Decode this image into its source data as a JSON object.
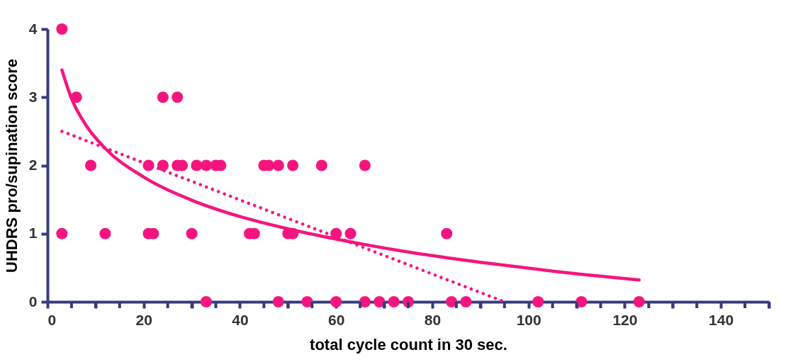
{
  "chart_data": {
    "type": "scatter",
    "xlabel": "total cycle count in 30 sec.",
    "ylabel": "UHDRS pro/supination score",
    "xlim": [
      0,
      150
    ],
    "ylim": [
      0,
      4
    ],
    "xticks": [
      0,
      {
        "value": 5,
        "label": null
      },
      {
        "value": 10,
        "label": null
      },
      {
        "value": 15,
        "label": null
      },
      20,
      {
        "value": 25,
        "label": null
      },
      {
        "value": 30,
        "label": null
      },
      {
        "value": 35,
        "label": null
      },
      40,
      {
        "value": 45,
        "label": null
      },
      {
        "value": 50,
        "label": null
      },
      {
        "value": 55,
        "label": null
      },
      60,
      {
        "value": 65,
        "label": null
      },
      {
        "value": 70,
        "label": null
      },
      {
        "value": 75,
        "label": null
      },
      80,
      {
        "value": 85,
        "label": null
      },
      {
        "value": 90,
        "label": null
      },
      {
        "value": 95,
        "label": null
      },
      100,
      {
        "value": 105,
        "label": null
      },
      {
        "value": 110,
        "label": null
      },
      {
        "value": 115,
        "label": null
      },
      120,
      {
        "value": 125,
        "label": null
      },
      {
        "value": 130,
        "label": null
      },
      {
        "value": 135,
        "label": null
      },
      140,
      {
        "value": 145,
        "label": null
      },
      {
        "value": 150,
        "label": null
      }
    ],
    "yticks": [
      0,
      1,
      2,
      3,
      4
    ],
    "grid": false,
    "marker": "circle",
    "series": [
      {
        "color": "#f5157f",
        "x": [
          3,
          6,
          24,
          27,
          9,
          21,
          24,
          27,
          28,
          31,
          33,
          35,
          36,
          45,
          46,
          48,
          51,
          57,
          66,
          3,
          12,
          21,
          22,
          30,
          42,
          43,
          50,
          51,
          60,
          63,
          83,
          33,
          48,
          54,
          60,
          66,
          69,
          72,
          75,
          84,
          87,
          102,
          111,
          123
        ],
        "values": [
          4,
          3,
          3,
          3,
          2,
          2,
          2,
          2,
          2,
          2,
          2,
          2,
          2,
          2,
          2,
          2,
          2,
          2,
          2,
          1,
          1,
          1,
          1,
          1,
          1,
          1,
          1,
          1,
          1,
          1,
          1,
          0,
          0,
          0,
          0,
          0,
          0,
          0,
          0,
          0,
          0,
          0,
          0,
          0
        ]
      },
      {
        "type": "line",
        "color": "#f5157f",
        "line_style": "solid",
        "marker": "none",
        "x": [
          3,
          5,
          8,
          12,
          20,
          30,
          40,
          50,
          60,
          75,
          90,
          105,
          123
        ],
        "values": [
          3.4,
          2.98,
          2.59,
          2.25,
          1.83,
          1.49,
          1.25,
          1.07,
          0.92,
          0.73,
          0.58,
          0.45,
          0.32
        ]
      },
      {
        "type": "line",
        "color": "#f5157f",
        "line_style": "dotted",
        "marker": "none",
        "x": [
          3,
          95
        ],
        "values": [
          2.5,
          0
        ]
      }
    ]
  }
}
